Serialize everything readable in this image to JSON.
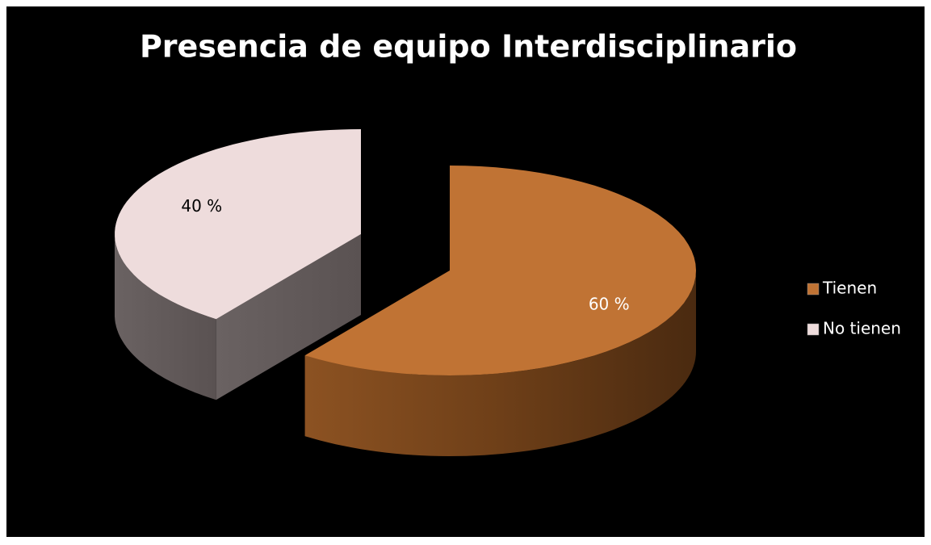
{
  "chart_data": {
    "type": "pie",
    "title": "Presencia de equipo Interdisciplinario",
    "categories": [
      "Tienen",
      "No tienen"
    ],
    "values": [
      60,
      40
    ],
    "value_labels": [
      "60 %",
      "40 %"
    ],
    "colors": [
      "#c07334",
      "#eedcdc"
    ],
    "legend": "right",
    "three_d": true
  }
}
